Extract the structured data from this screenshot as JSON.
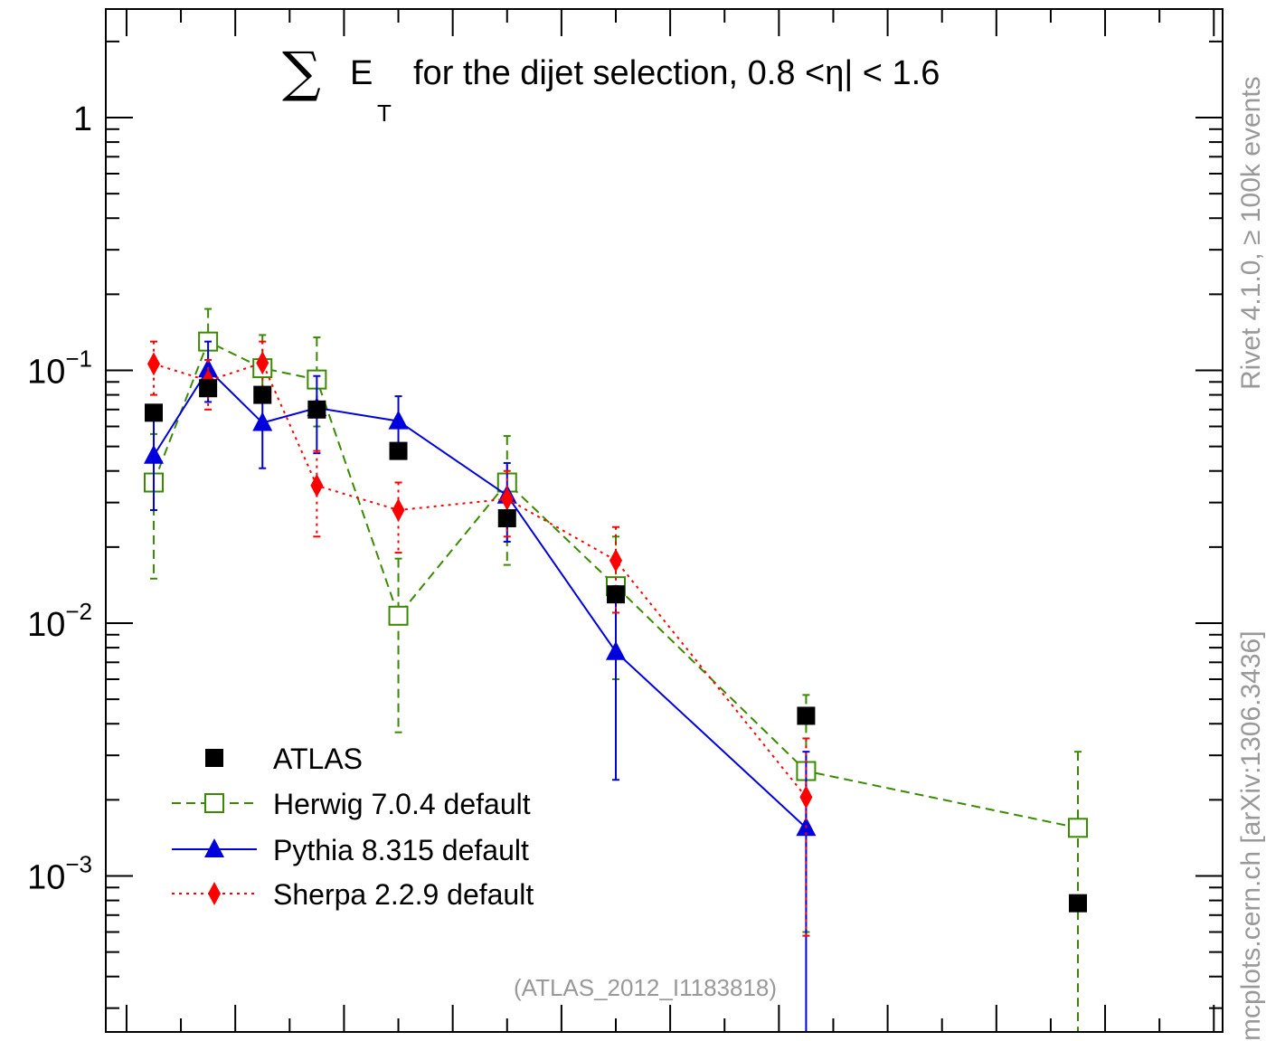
{
  "side_labels": {
    "top": "Rivet 4.1.0, ≥ 100k events",
    "bottom": "mcplots.cern.ch [arXiv:1306.3436]"
  },
  "watermark": "(ATLAS_2012_I1183818)",
  "title": {
    "sigma": "∑",
    "e": "E",
    "sub": "T",
    "rest": "for the dijet selection, 0.8 <η| < 1.6"
  },
  "chart_data": {
    "type": "scatter",
    "yscale": "log",
    "xlim": [
      0,
      1.0
    ],
    "ylim": [
      0.00025,
      2.5
    ],
    "y_ticks": [
      {
        "value": 1,
        "base": "1",
        "exp": ""
      },
      {
        "value": 0.1,
        "base": "10",
        "exp": "−1"
      },
      {
        "value": 0.01,
        "base": "10",
        "exp": "−2"
      },
      {
        "value": 0.001,
        "base": "10",
        "exp": "−3"
      }
    ],
    "legend_position": "bottom-left",
    "series": [
      {
        "name": "ATLAS",
        "color": "#000000",
        "marker": "square-filled",
        "line": "none",
        "points": [
          {
            "x": 0.025,
            "y": 0.068
          },
          {
            "x": 0.075,
            "y": 0.085
          },
          {
            "x": 0.125,
            "y": 0.08
          },
          {
            "x": 0.175,
            "y": 0.07
          },
          {
            "x": 0.25,
            "y": 0.048
          },
          {
            "x": 0.35,
            "y": 0.026
          },
          {
            "x": 0.45,
            "y": 0.013
          },
          {
            "x": 0.625,
            "y": 0.0043
          },
          {
            "x": 0.875,
            "y": 0.00078
          }
        ]
      },
      {
        "name": "Herwig 7.0.4 default",
        "color": "#3a8a00",
        "marker": "square-open",
        "line": "dashed",
        "points": [
          {
            "x": 0.025,
            "y": 0.036,
            "lo": 0.015,
            "hi": 0.056
          },
          {
            "x": 0.075,
            "y": 0.13,
            "lo": 0.1,
            "hi": 0.175
          },
          {
            "x": 0.125,
            "y": 0.102,
            "lo": 0.075,
            "hi": 0.138
          },
          {
            "x": 0.175,
            "y": 0.092,
            "lo": 0.06,
            "hi": 0.135
          },
          {
            "x": 0.25,
            "y": 0.0107,
            "lo": 0.0037,
            "hi": 0.018
          },
          {
            "x": 0.35,
            "y": 0.036,
            "lo": 0.017,
            "hi": 0.055
          },
          {
            "x": 0.45,
            "y": 0.014,
            "lo": 0.006,
            "hi": 0.022
          },
          {
            "x": 0.625,
            "y": 0.0026,
            "lo": 0.0006,
            "hi": 0.0052
          },
          {
            "x": 0.875,
            "y": 0.00155,
            "lo": 0.0002,
            "hi": 0.0031
          }
        ]
      },
      {
        "name": "Pythia 8.315 default",
        "color": "#0000dd",
        "marker": "triangle-filled",
        "line": "solid",
        "points": [
          {
            "x": 0.025,
            "y": 0.046,
            "lo": 0.028,
            "hi": 0.065
          },
          {
            "x": 0.075,
            "y": 0.101,
            "lo": 0.075,
            "hi": 0.13
          },
          {
            "x": 0.125,
            "y": 0.062,
            "lo": 0.041,
            "hi": 0.085
          },
          {
            "x": 0.175,
            "y": 0.071,
            "lo": 0.047,
            "hi": 0.095
          },
          {
            "x": 0.25,
            "y": 0.063,
            "lo": 0.048,
            "hi": 0.079
          },
          {
            "x": 0.35,
            "y": 0.032,
            "lo": 0.021,
            "hi": 0.043
          },
          {
            "x": 0.45,
            "y": 0.0077,
            "lo": 0.0024,
            "hi": 0.014
          },
          {
            "x": 0.625,
            "y": 0.00155,
            "lo": 0.0002,
            "hi": 0.0031
          }
        ]
      },
      {
        "name": "Sherpa 2.2.9 default",
        "color": "#ff0000",
        "marker": "diamond-filled",
        "line": "dotted",
        "points": [
          {
            "x": 0.025,
            "y": 0.106,
            "lo": 0.08,
            "hi": 0.13
          },
          {
            "x": 0.075,
            "y": 0.091,
            "lo": 0.07,
            "hi": 0.11
          },
          {
            "x": 0.125,
            "y": 0.107,
            "lo": 0.082,
            "hi": 0.13
          },
          {
            "x": 0.175,
            "y": 0.035,
            "lo": 0.022,
            "hi": 0.048
          },
          {
            "x": 0.25,
            "y": 0.028,
            "lo": 0.019,
            "hi": 0.036
          },
          {
            "x": 0.35,
            "y": 0.031,
            "lo": 0.022,
            "hi": 0.04
          },
          {
            "x": 0.45,
            "y": 0.0177,
            "lo": 0.011,
            "hi": 0.024
          },
          {
            "x": 0.625,
            "y": 0.00205,
            "lo": 0.00058,
            "hi": 0.0035
          }
        ]
      }
    ]
  }
}
